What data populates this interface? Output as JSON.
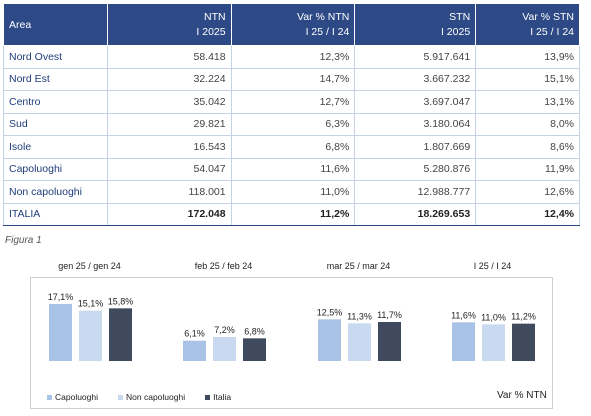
{
  "table": {
    "headers": [
      {
        "l1": "Area",
        "l2": ""
      },
      {
        "l1": "NTN",
        "l2": "I 2025"
      },
      {
        "l1": "Var % NTN",
        "l2": "I 25 / I 24"
      },
      {
        "l1": "STN",
        "l2": "I 2025"
      },
      {
        "l1": "Var % STN",
        "l2": "I 25 / I 24"
      }
    ],
    "rows": [
      {
        "area": "Nord Ovest",
        "ntn": "58.418",
        "vntn": "12,3%",
        "stn": "5.917.641",
        "vstn": "13,9%"
      },
      {
        "area": "Nord Est",
        "ntn": "32.224",
        "vntn": "14,7%",
        "stn": "3.667.232",
        "vstn": "15,1%"
      },
      {
        "area": "Centro",
        "ntn": "35.042",
        "vntn": "12,7%",
        "stn": "3.697.047",
        "vstn": "13,1%"
      },
      {
        "area": "Sud",
        "ntn": "29.821",
        "vntn": "6,3%",
        "stn": "3.180.064",
        "vstn": "8,0%"
      },
      {
        "area": "Isole",
        "ntn": "16.543",
        "vntn": "6,8%",
        "stn": "1.807.669",
        "vstn": "8,6%"
      },
      {
        "area": "Capoluoghi",
        "ntn": "54.047",
        "vntn": "11,6%",
        "stn": "5.280.876",
        "vstn": "11,9%"
      },
      {
        "area": "Non capoluoghi",
        "ntn": "118.001",
        "vntn": "11,0%",
        "stn": "12.988.777",
        "vstn": "12,6%"
      }
    ],
    "total": {
      "area": "ITALIA",
      "ntn": "172.048",
      "vntn": "11,2%",
      "stn": "18.269.653",
      "vstn": "12,4%"
    }
  },
  "figure_caption": "Figura 1",
  "chart_data": {
    "type": "bar",
    "categories": [
      "gen 25 / gen 24",
      "feb 25 / feb 24",
      "mar 25 / mar 24",
      "I 25 / I 24"
    ],
    "series": [
      {
        "name": "Capoluoghi",
        "values": [
          17.1,
          6.1,
          12.5,
          11.6
        ],
        "labels": [
          "17,1%",
          "6,1%",
          "12,5%",
          "11,6%"
        ],
        "color": "#a9c3e6"
      },
      {
        "name": "Non capoluoghi",
        "values": [
          15.1,
          7.2,
          11.3,
          11.0
        ],
        "labels": [
          "15,1%",
          "7,2%",
          "11,3%",
          "11,0%"
        ],
        "color": "#c9daf0"
      },
      {
        "name": "Italia",
        "values": [
          15.8,
          6.8,
          11.7,
          11.2
        ],
        "labels": [
          "15,8%",
          "6,8%",
          "11,7%",
          "11,2%"
        ],
        "color": "#3f4a5e"
      }
    ],
    "ylabel": "Var % NTN",
    "ylim": [
      0,
      18
    ],
    "grid": false,
    "legend_position": "bottom-left"
  }
}
